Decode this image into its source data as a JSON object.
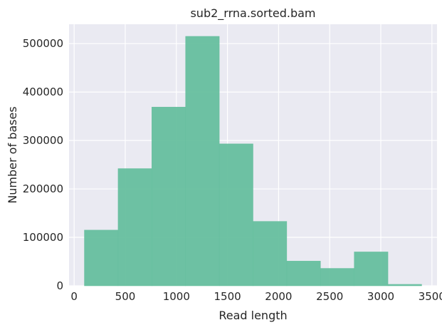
{
  "chart_data": {
    "type": "bar",
    "title": "sub2_rrna.sorted.bam",
    "xlabel": "Read length",
    "ylabel": "Number of bases",
    "xlim": [
      -50,
      3550
    ],
    "ylim": [
      0,
      540000
    ],
    "xticks": [
      0,
      500,
      1000,
      1500,
      2000,
      2500,
      3000,
      3500
    ],
    "yticks": [
      0,
      100000,
      200000,
      300000,
      400000,
      500000
    ],
    "bins": [
      {
        "x0": 100,
        "x1": 430,
        "value": 115000
      },
      {
        "x0": 430,
        "x1": 760,
        "value": 242000
      },
      {
        "x0": 760,
        "x1": 1090,
        "value": 369000
      },
      {
        "x0": 1090,
        "x1": 1420,
        "value": 515000
      },
      {
        "x0": 1420,
        "x1": 1750,
        "value": 293000
      },
      {
        "x0": 1750,
        "x1": 2080,
        "value": 133000
      },
      {
        "x0": 2080,
        "x1": 2410,
        "value": 51000
      },
      {
        "x0": 2410,
        "x1": 2740,
        "value": 36000
      },
      {
        "x0": 2740,
        "x1": 3070,
        "value": 70000
      },
      {
        "x0": 3070,
        "x1": 3400,
        "value": 3000
      }
    ],
    "grid": true,
    "colors": {
      "background": "#EAEAF2",
      "grid": "#FFFFFF",
      "bar": "#66BF9E",
      "text": "#262626"
    }
  }
}
